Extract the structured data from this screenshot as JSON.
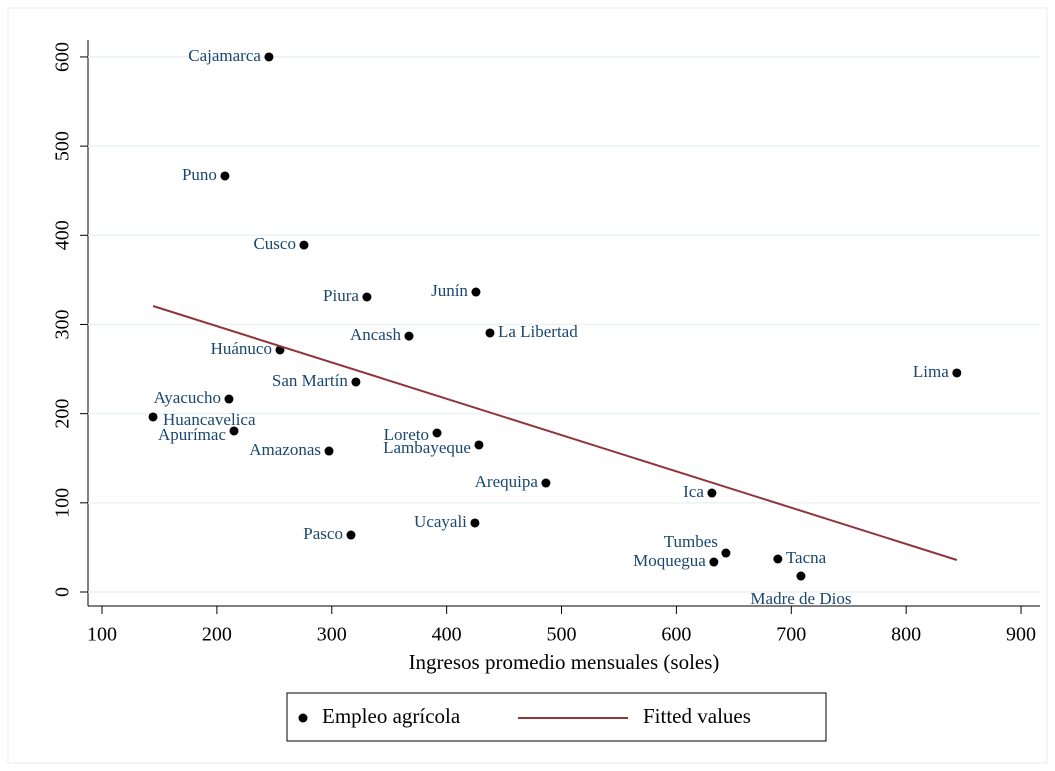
{
  "chart_data": {
    "type": "scatter",
    "x_label": "Ingresos promedio mensuales (soles)",
    "xlim": [
      87.8,
      916.5
    ],
    "xticks": [
      100,
      200,
      300,
      400,
      500,
      600,
      700,
      800,
      900
    ],
    "ylim": [
      -15.7,
      619
    ],
    "yticks": [
      0,
      100,
      200,
      300,
      400,
      500,
      600
    ],
    "grid": true,
    "series": [
      {
        "name": "Empleo agrícola",
        "type": "scatter",
        "color": "#000000",
        "label_color": "#1a476f",
        "labels": [
          "Cajamarca",
          "Puno",
          "Cusco",
          "Piura",
          "Junín",
          "Ancash",
          "La Libertad",
          "Huánuco",
          "San Martín",
          "Lima",
          "Ayacucho",
          "Huancavelica",
          "Apurímac",
          "Loreto",
          "Lambayeque",
          "Amazonas",
          "Arequipa",
          "Ica",
          "Ucayali",
          "Pasco",
          "Tumbes",
          "Moquegua",
          "Tacna",
          "Madre de Dios"
        ],
        "x": [
          245.3,
          207,
          275.8,
          330.6,
          425.5,
          367.2,
          437.7,
          254.9,
          321,
          844.1,
          210.5,
          144.4,
          214.9,
          391.6,
          428.1,
          297.6,
          486.4,
          630.9,
          424.6,
          316.7,
          643.1,
          632.6,
          688.3,
          708.4
        ],
        "values": [
          600,
          466.5,
          389,
          330.8,
          336.4,
          287,
          290.5,
          271.4,
          235.5,
          245.6,
          216.4,
          196.3,
          180.6,
          178.3,
          164.9,
          158.1,
          122.2,
          111,
          77.4,
          63.9,
          43.7,
          33.6,
          37,
          17.9
        ]
      },
      {
        "name": "Fitted values",
        "type": "line",
        "color": "#90353b",
        "x": [
          144.4,
          844.1
        ],
        "values": [
          320.7,
          35.9
        ]
      }
    ]
  }
}
